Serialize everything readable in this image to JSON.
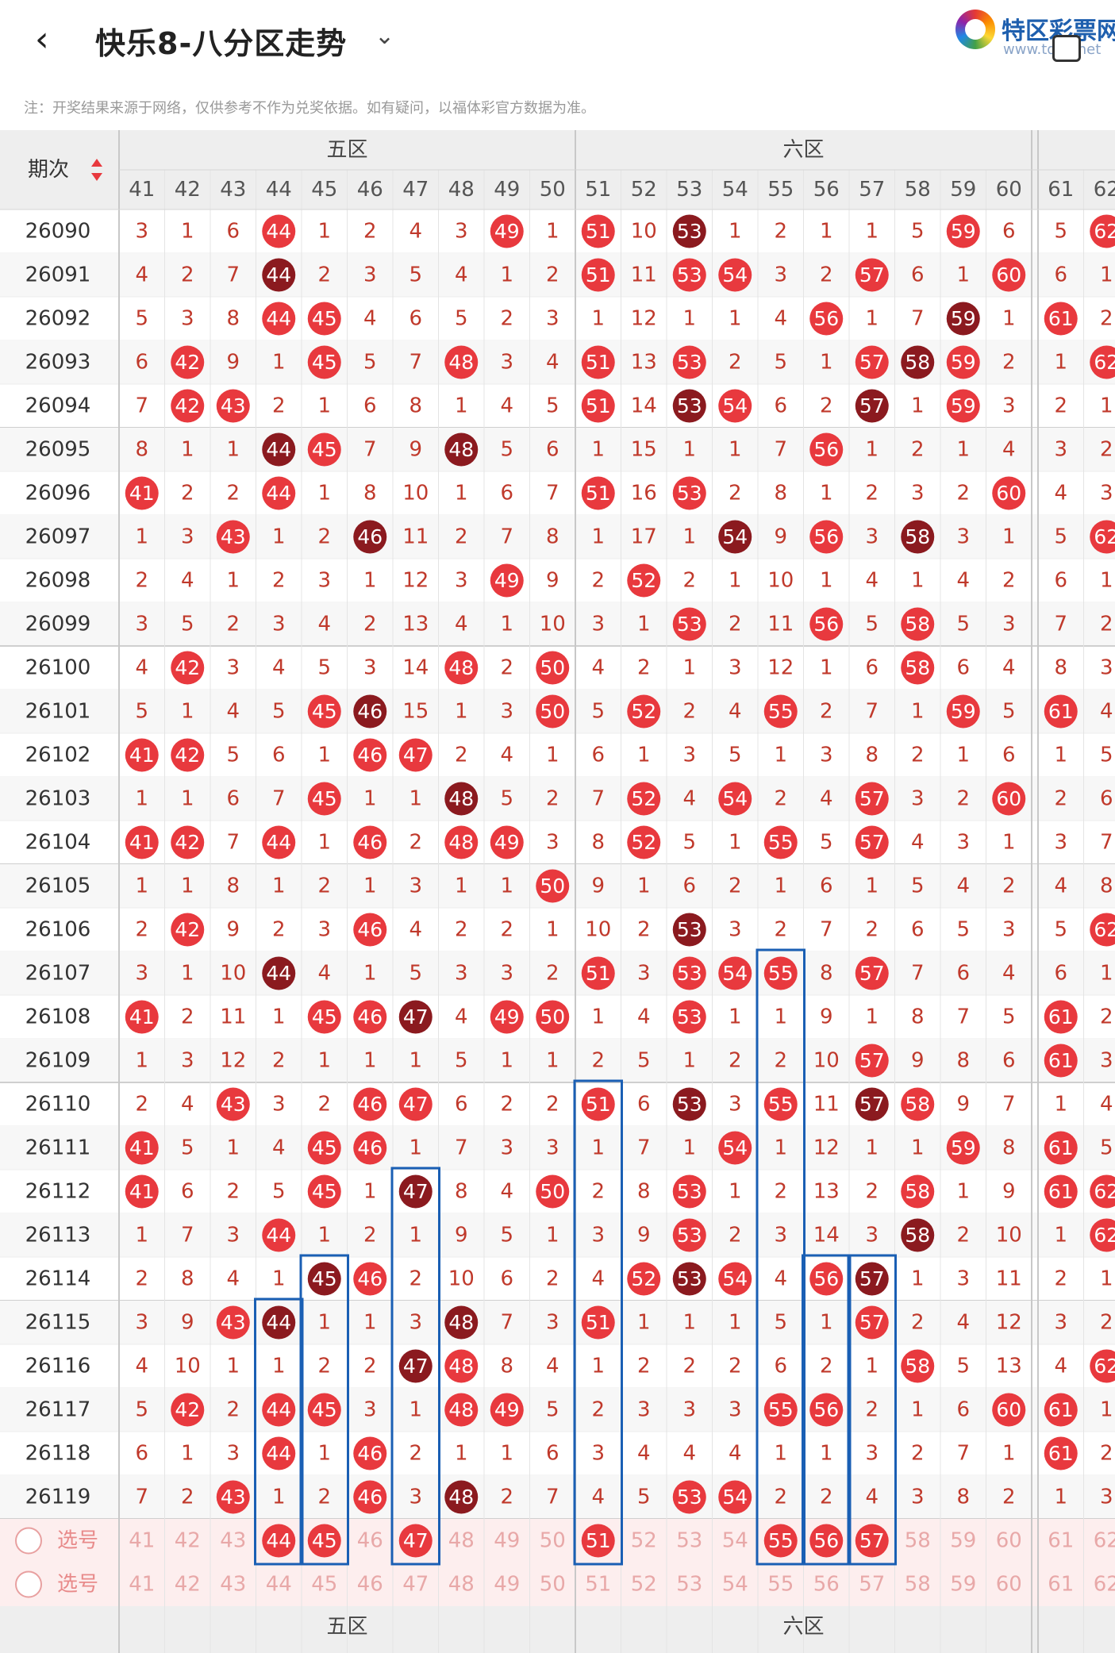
{
  "header": {
    "back_icon": "chevron-left-icon",
    "title": "快乐8-八分区走势",
    "dropdown_icon": "chevron-down-icon",
    "logo_text": "特区彩票网",
    "logo_sub": "www.tqcp.net"
  },
  "note": "注：开奖结果来源于网络，仅供参考不作为兑奖依据。如有疑问，以福体彩官方数据为准。",
  "table": {
    "period_header": "期次",
    "zones": [
      "五区",
      "六区"
    ],
    "numbers": [
      41,
      42,
      43,
      44,
      45,
      46,
      47,
      48,
      49,
      50,
      51,
      52,
      53,
      54,
      55,
      56,
      57,
      58,
      59,
      60,
      61,
      62
    ],
    "select_label": "选号",
    "rows": [
      {
        "period": "26090",
        "cells": [
          3,
          1,
          6,
          44,
          1,
          2,
          4,
          3,
          49,
          1,
          51,
          10,
          53,
          1,
          2,
          1,
          1,
          5,
          59,
          6,
          5,
          62
        ]
      },
      {
        "period": "26091",
        "cells": [
          4,
          2,
          7,
          44,
          2,
          3,
          5,
          4,
          1,
          2,
          51,
          11,
          53,
          54,
          3,
          2,
          57,
          6,
          1,
          60,
          6,
          1
        ]
      },
      {
        "period": "26092",
        "cells": [
          5,
          3,
          8,
          44,
          45,
          4,
          6,
          5,
          2,
          3,
          1,
          12,
          1,
          1,
          4,
          56,
          1,
          7,
          59,
          1,
          61,
          2
        ]
      },
      {
        "period": "26093",
        "cells": [
          6,
          42,
          9,
          1,
          45,
          5,
          7,
          48,
          3,
          4,
          51,
          13,
          53,
          2,
          5,
          1,
          57,
          58,
          59,
          2,
          1,
          62
        ]
      },
      {
        "period": "26094",
        "cells": [
          7,
          42,
          43,
          2,
          1,
          6,
          8,
          1,
          4,
          5,
          51,
          14,
          53,
          54,
          6,
          2,
          57,
          1,
          59,
          3,
          2,
          1
        ]
      },
      {
        "period": "26095",
        "cells": [
          8,
          1,
          1,
          44,
          45,
          7,
          9,
          48,
          5,
          6,
          1,
          15,
          1,
          1,
          7,
          56,
          1,
          2,
          1,
          4,
          3,
          2
        ]
      },
      {
        "period": "26096",
        "cells": [
          41,
          2,
          2,
          44,
          1,
          8,
          10,
          1,
          6,
          7,
          51,
          16,
          53,
          2,
          8,
          1,
          2,
          3,
          2,
          60,
          4,
          3
        ]
      },
      {
        "period": "26097",
        "cells": [
          1,
          3,
          43,
          1,
          2,
          46,
          11,
          2,
          7,
          8,
          1,
          17,
          1,
          54,
          9,
          56,
          3,
          58,
          3,
          1,
          5,
          62
        ]
      },
      {
        "period": "26098",
        "cells": [
          2,
          4,
          1,
          2,
          3,
          1,
          12,
          3,
          49,
          9,
          2,
          52,
          2,
          1,
          10,
          1,
          4,
          1,
          4,
          2,
          6,
          1
        ]
      },
      {
        "period": "26099",
        "cells": [
          3,
          5,
          2,
          3,
          4,
          2,
          13,
          4,
          1,
          10,
          3,
          1,
          53,
          2,
          11,
          56,
          5,
          58,
          5,
          3,
          7,
          2
        ]
      },
      {
        "period": "26100",
        "cells": [
          4,
          42,
          3,
          4,
          5,
          3,
          14,
          48,
          2,
          50,
          4,
          2,
          1,
          3,
          12,
          1,
          6,
          58,
          6,
          4,
          8,
          3
        ]
      },
      {
        "period": "26101",
        "cells": [
          5,
          1,
          4,
          5,
          45,
          46,
          15,
          1,
          3,
          50,
          5,
          52,
          2,
          4,
          55,
          2,
          7,
          1,
          59,
          5,
          61,
          4
        ]
      },
      {
        "period": "26102",
        "cells": [
          41,
          42,
          5,
          6,
          1,
          46,
          47,
          2,
          4,
          1,
          6,
          1,
          3,
          5,
          1,
          3,
          8,
          2,
          1,
          6,
          1,
          5
        ]
      },
      {
        "period": "26103",
        "cells": [
          1,
          1,
          6,
          7,
          45,
          1,
          1,
          48,
          5,
          2,
          7,
          52,
          4,
          54,
          2,
          4,
          57,
          3,
          2,
          60,
          2,
          6
        ]
      },
      {
        "period": "26104",
        "cells": [
          41,
          42,
          7,
          44,
          1,
          46,
          2,
          48,
          49,
          3,
          8,
          52,
          5,
          1,
          55,
          5,
          57,
          4,
          3,
          1,
          3,
          7
        ]
      },
      {
        "period": "26105",
        "cells": [
          1,
          1,
          8,
          1,
          2,
          1,
          3,
          1,
          1,
          50,
          9,
          1,
          6,
          2,
          1,
          6,
          1,
          5,
          4,
          2,
          4,
          8
        ]
      },
      {
        "period": "26106",
        "cells": [
          2,
          42,
          9,
          2,
          3,
          46,
          4,
          2,
          2,
          1,
          10,
          2,
          53,
          3,
          2,
          7,
          2,
          6,
          5,
          3,
          5,
          62
        ]
      },
      {
        "period": "26107",
        "cells": [
          3,
          1,
          10,
          44,
          4,
          1,
          5,
          3,
          3,
          2,
          51,
          3,
          53,
          54,
          55,
          8,
          57,
          7,
          6,
          4,
          6,
          1
        ]
      },
      {
        "period": "26108",
        "cells": [
          41,
          2,
          11,
          1,
          45,
          46,
          47,
          4,
          49,
          50,
          1,
          4,
          53,
          1,
          1,
          9,
          1,
          8,
          7,
          5,
          61,
          2
        ]
      },
      {
        "period": "26109",
        "cells": [
          1,
          3,
          12,
          2,
          1,
          1,
          1,
          5,
          1,
          1,
          2,
          5,
          1,
          2,
          2,
          10,
          57,
          9,
          8,
          6,
          61,
          3
        ]
      },
      {
        "period": "26110",
        "cells": [
          2,
          4,
          43,
          3,
          2,
          46,
          47,
          6,
          2,
          2,
          51,
          6,
          53,
          3,
          55,
          11,
          57,
          58,
          9,
          7,
          1,
          4
        ]
      },
      {
        "period": "26111",
        "cells": [
          41,
          5,
          1,
          4,
          45,
          46,
          1,
          7,
          3,
          3,
          1,
          7,
          1,
          54,
          1,
          12,
          1,
          1,
          59,
          8,
          61,
          5
        ]
      },
      {
        "period": "26112",
        "cells": [
          41,
          6,
          2,
          5,
          45,
          1,
          47,
          8,
          4,
          50,
          2,
          8,
          53,
          1,
          2,
          13,
          2,
          58,
          1,
          9,
          61,
          62
        ]
      },
      {
        "period": "26113",
        "cells": [
          1,
          7,
          3,
          44,
          1,
          2,
          1,
          9,
          5,
          1,
          3,
          9,
          53,
          2,
          3,
          14,
          3,
          58,
          2,
          10,
          1,
          62
        ]
      },
      {
        "period": "26114",
        "cells": [
          2,
          8,
          4,
          1,
          45,
          46,
          2,
          10,
          6,
          2,
          4,
          52,
          53,
          54,
          4,
          56,
          57,
          1,
          3,
          11,
          2,
          1
        ]
      },
      {
        "period": "26115",
        "cells": [
          3,
          9,
          43,
          44,
          1,
          1,
          3,
          48,
          7,
          3,
          51,
          1,
          1,
          1,
          5,
          1,
          57,
          2,
          4,
          12,
          3,
          2
        ]
      },
      {
        "period": "26116",
        "cells": [
          4,
          10,
          1,
          1,
          2,
          2,
          47,
          48,
          8,
          4,
          1,
          2,
          2,
          2,
          6,
          2,
          1,
          58,
          5,
          13,
          4,
          62
        ]
      },
      {
        "period": "26117",
        "cells": [
          5,
          42,
          2,
          44,
          45,
          3,
          1,
          48,
          49,
          5,
          2,
          3,
          3,
          3,
          55,
          56,
          2,
          1,
          6,
          60,
          61,
          1
        ]
      },
      {
        "period": "26118",
        "cells": [
          6,
          1,
          3,
          44,
          1,
          46,
          2,
          1,
          1,
          6,
          3,
          4,
          4,
          4,
          1,
          1,
          3,
          2,
          7,
          1,
          61,
          2
        ]
      },
      {
        "period": "26119",
        "cells": [
          7,
          2,
          43,
          1,
          2,
          46,
          3,
          48,
          2,
          7,
          4,
          5,
          53,
          54,
          2,
          2,
          4,
          3,
          8,
          2,
          1,
          3
        ]
      }
    ],
    "select_rows": [
      {
        "label": "选号",
        "selected": [
          44,
          45,
          47,
          51,
          55,
          56,
          57
        ]
      },
      {
        "label": "选号",
        "selected": []
      }
    ],
    "colors": {
      "ball_red": "#e8393e",
      "ball_dark": "#8b1a1f",
      "miss_text": "#c0392b",
      "highlight_box": "#1a5fb4",
      "header_bg": "#eeeeee"
    }
  }
}
